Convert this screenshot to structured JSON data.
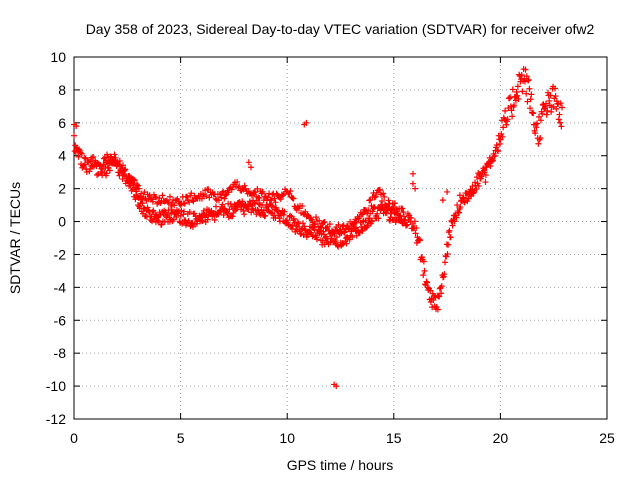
{
  "chart_data": {
    "type": "scatter",
    "title": "Day 358 of 2023, Sidereal Day-to-day VTEC variation (SDTVAR) for receiver ofw2",
    "xlabel": "GPS time / hours",
    "ylabel": "SDTVAR / TECUs",
    "xlim": [
      0,
      25
    ],
    "ylim": [
      -12,
      10
    ],
    "xticks": [
      0,
      5,
      10,
      15,
      20,
      25
    ],
    "yticks": [
      -12,
      -10,
      -8,
      -6,
      -4,
      -2,
      0,
      2,
      4,
      6,
      8,
      10
    ],
    "grid": true,
    "marker": "+",
    "color": "#ff0000",
    "series": [
      {
        "name": "ofw2",
        "trend": [
          [
            0.0,
            4.8
          ],
          [
            0.1,
            4.5
          ],
          [
            0.2,
            4.2
          ],
          [
            0.4,
            3.6
          ],
          [
            0.6,
            3.3
          ],
          [
            0.8,
            3.6
          ],
          [
            1.0,
            3.4
          ],
          [
            1.2,
            3.0
          ],
          [
            1.5,
            3.2
          ],
          [
            1.7,
            3.5
          ],
          [
            1.9,
            3.6
          ],
          [
            2.1,
            3.2
          ],
          [
            2.3,
            2.9
          ],
          [
            2.5,
            2.6
          ],
          [
            2.7,
            2.2
          ],
          [
            2.9,
            1.6
          ],
          [
            3.1,
            1.1
          ],
          [
            3.3,
            0.8
          ],
          [
            3.5,
            0.6
          ],
          [
            3.8,
            0.3
          ],
          [
            4.2,
            0.2
          ],
          [
            4.6,
            0.4
          ],
          [
            5.0,
            0.3
          ],
          [
            5.3,
            0.2
          ],
          [
            5.6,
            0.1
          ],
          [
            6.0,
            0.2
          ],
          [
            6.3,
            0.4
          ],
          [
            6.7,
            0.5
          ],
          [
            7.0,
            0.6
          ],
          [
            7.3,
            0.7
          ],
          [
            7.6,
            0.8
          ],
          [
            8.0,
            0.9
          ],
          [
            8.3,
            0.9
          ],
          [
            8.7,
            0.8
          ],
          [
            9.0,
            0.7
          ],
          [
            9.3,
            0.6
          ],
          [
            9.7,
            0.4
          ],
          [
            10.0,
            0.1
          ],
          [
            10.4,
            -0.2
          ],
          [
            10.8,
            -0.5
          ],
          [
            11.2,
            -0.8
          ],
          [
            11.6,
            -1.0
          ],
          [
            12.0,
            -1.0
          ],
          [
            12.4,
            -1.1
          ],
          [
            12.8,
            -0.9
          ],
          [
            13.2,
            -0.5
          ],
          [
            13.6,
            -0.1
          ],
          [
            14.0,
            0.4
          ],
          [
            14.4,
            0.7
          ],
          [
            14.8,
            0.5
          ],
          [
            15.2,
            0.3
          ],
          [
            15.6,
            0.1
          ],
          [
            16.0,
            -0.3
          ],
          [
            16.2,
            -1.5
          ],
          [
            16.4,
            -2.8
          ],
          [
            16.6,
            -4.0
          ],
          [
            16.8,
            -4.9
          ],
          [
            17.0,
            -5.2
          ],
          [
            17.2,
            -4.3
          ],
          [
            17.4,
            -2.6
          ],
          [
            17.6,
            -0.8
          ],
          [
            17.9,
            0.4
          ],
          [
            18.2,
            1.2
          ],
          [
            18.6,
            1.9
          ],
          [
            19.0,
            2.6
          ],
          [
            19.4,
            3.4
          ],
          [
            19.8,
            4.4
          ],
          [
            20.2,
            5.8
          ],
          [
            20.5,
            7.0
          ],
          [
            20.8,
            8.2
          ],
          [
            21.1,
            8.8
          ],
          [
            21.3,
            8.0
          ],
          [
            21.5,
            6.8
          ],
          [
            21.7,
            5.3
          ],
          [
            21.9,
            6.0
          ],
          [
            22.1,
            6.8
          ],
          [
            22.3,
            7.2
          ],
          [
            22.5,
            7.4
          ],
          [
            22.7,
            6.9
          ],
          [
            22.9,
            6.2
          ]
        ],
        "upper_band": [
          [
            1.4,
            3.8
          ],
          [
            1.9,
            3.8
          ],
          [
            2.4,
            3.0
          ],
          [
            3.2,
            1.6
          ],
          [
            4.4,
            1.2
          ],
          [
            5.0,
            1.3
          ],
          [
            5.8,
            1.5
          ],
          [
            6.3,
            1.7
          ],
          [
            6.8,
            1.4
          ],
          [
            7.3,
            1.9
          ],
          [
            7.7,
            2.3
          ],
          [
            8.2,
            1.6
          ],
          [
            8.6,
            1.7
          ],
          [
            9.0,
            1.5
          ],
          [
            9.6,
            1.4
          ],
          [
            10.0,
            1.9
          ],
          [
            10.4,
            1.0
          ],
          [
            10.9,
            0.5
          ],
          [
            11.5,
            -0.2
          ],
          [
            12.3,
            -0.5
          ],
          [
            13.0,
            -0.3
          ],
          [
            13.7,
            0.6
          ],
          [
            14.2,
            1.9
          ],
          [
            14.8,
            1.0
          ],
          [
            15.5,
            0.5
          ]
        ],
        "outliers": [
          [
            0.0,
            5.9
          ],
          [
            0.1,
            5.8
          ],
          [
            8.2,
            3.6
          ],
          [
            8.3,
            3.3
          ],
          [
            10.8,
            5.9
          ],
          [
            10.9,
            6.0
          ],
          [
            12.2,
            -9.9
          ],
          [
            12.3,
            -10.0
          ],
          [
            15.9,
            2.9
          ],
          [
            15.9,
            2.3
          ],
          [
            16.0,
            2.0
          ],
          [
            17.3,
            1.3
          ],
          [
            17.5,
            1.8
          ],
          [
            18.1,
            1.6
          ],
          [
            19.3,
            2.4
          ]
        ]
      }
    ]
  }
}
